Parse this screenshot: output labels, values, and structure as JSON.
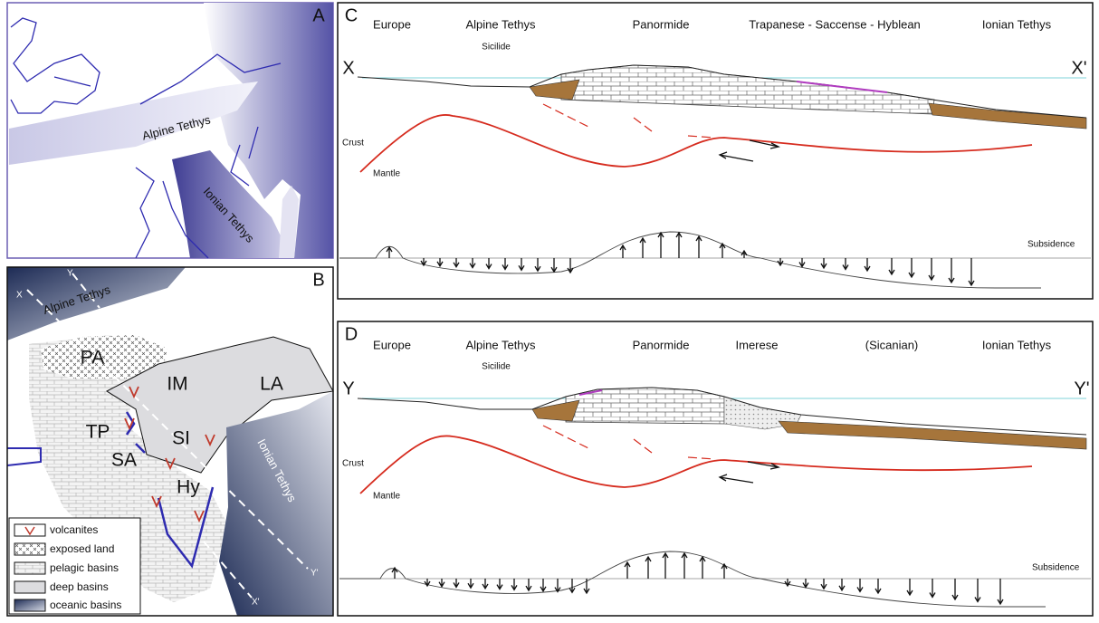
{
  "panel_a": {
    "label": "A",
    "alpine": "Alpine Tethys",
    "ionian": "Ionian Tethys"
  },
  "panel_b": {
    "label": "B",
    "x": "X",
    "y": "Y",
    "alpine": "Alpine Tethys",
    "areas": [
      "PA",
      "IM",
      "LA",
      "TP",
      "SI",
      "SA",
      "Hy"
    ],
    "ionian": "Ionian Tethys",
    "y_end": "Y'",
    "x_end": "X'",
    "legend": [
      "volcanites",
      "exposed land",
      "pelagic basins",
      "deep basins",
      "oceanic basins"
    ]
  },
  "panel_c": {
    "label": "C",
    "headers": [
      "Europe",
      "Alpine Tethys",
      "Panormide",
      "Trapanese - Saccense - Hyblean",
      "Ionian Tethys"
    ],
    "sublabel": "Sicilide",
    "start": "X",
    "end": "X'",
    "crust": "Crust",
    "mantle": "Mantle",
    "subsidence": "Subsidence"
  },
  "panel_d": {
    "label": "D",
    "headers": [
      "Europe",
      "Alpine Tethys",
      "Panormide",
      "Imerese",
      "(Sicanian)",
      "Ionian Tethys"
    ],
    "sublabel": "Sicilide",
    "start": "Y",
    "end": "Y'",
    "crust": "Crust",
    "mantle": "Mantle",
    "subsidence": "Subsidence"
  }
}
